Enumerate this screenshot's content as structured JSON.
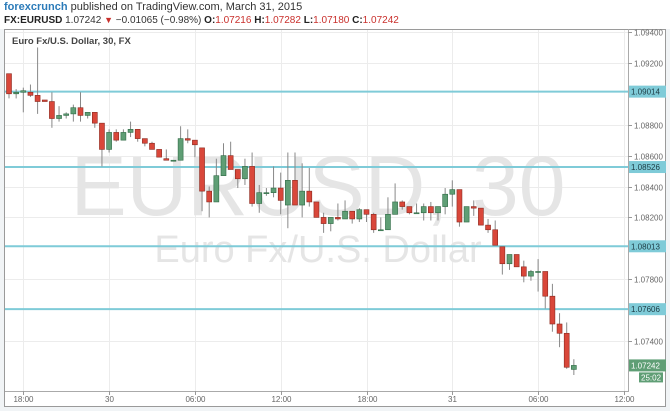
{
  "header": {
    "brand": "forexcrunch",
    "published": "published on TradingView.com, March 31, 2015",
    "symbol": "FX:EURUSD",
    "last": "1.07242",
    "change_icon": "down-triangle-icon",
    "change": "−0.01065 (−0.98%)",
    "o_label": "O:",
    "o_value": "1.07216",
    "h_label": "H:",
    "h_value": "1.07282",
    "l_label": "L:",
    "l_value": "1.07180",
    "c_label": "C:",
    "c_value": "1.07242"
  },
  "legend": "Euro Fx/U.S. Dollar, 30, FX",
  "watermark": {
    "symbol": "EURUSD, 30",
    "description": "Euro Fx/U.S. Dollar"
  },
  "chart_data": {
    "type": "candlestick",
    "interval": "30",
    "ylim": [
      1.0718,
      1.0942
    ],
    "grid": true,
    "y_ticks": [
      "1.09400",
      "1.09200",
      "1.08800",
      "1.08600",
      "1.08400",
      "1.08200",
      "1.07800",
      "1.07400"
    ],
    "x_ticks": [
      {
        "label": "18:00",
        "candle": 2
      },
      {
        "label": "30",
        "candle": 14
      },
      {
        "label": "06:00",
        "candle": 26
      },
      {
        "label": "12:00",
        "candle": 38
      },
      {
        "label": "18:00",
        "candle": 50
      },
      {
        "label": "31",
        "candle": 62
      },
      {
        "label": "06:00",
        "candle": 74
      },
      {
        "label": "12:00",
        "candle": 86
      }
    ],
    "horizontal_lines": [
      {
        "price": 1.09014,
        "label": "1.09014"
      },
      {
        "price": 1.08526,
        "label": "1.08526"
      },
      {
        "price": 1.08013,
        "label": "1.08013"
      },
      {
        "price": 1.07606,
        "label": "1.07606"
      }
    ],
    "last_price": {
      "price": 1.07242,
      "label": "1.07242",
      "countdown": "25:02"
    },
    "colors": {
      "up": "#5f9e75",
      "down": "#d9473a",
      "hline": "#7fcbd8",
      "last": "#5f9e75"
    },
    "ohlc": [
      [
        1.0913,
        1.0913,
        1.0897,
        1.09
      ],
      [
        1.09,
        1.0903,
        1.0897,
        1.0901
      ],
      [
        1.0901,
        1.0904,
        1.0888,
        1.0902
      ],
      [
        1.0901,
        1.0906,
        1.0898,
        1.0899
      ],
      [
        1.0899,
        1.093,
        1.0887,
        1.0895
      ],
      [
        1.0896,
        1.0896,
        1.0895,
        1.0895
      ],
      [
        1.0895,
        1.0901,
        1.0878,
        1.0884
      ],
      [
        1.0884,
        1.0892,
        1.0882,
        1.0886
      ],
      [
        1.0886,
        1.0888,
        1.0884,
        1.0887
      ],
      [
        1.0887,
        1.0893,
        1.0882,
        1.0891
      ],
      [
        1.0891,
        1.0901,
        1.0882,
        1.0886
      ],
      [
        1.0886,
        1.0888,
        1.0884,
        1.0888
      ],
      [
        1.0888,
        1.0888,
        1.0878,
        1.0881
      ],
      [
        1.0881,
        1.0881,
        1.0853,
        1.0864
      ],
      [
        1.0864,
        1.0877,
        1.0862,
        1.0875
      ],
      [
        1.0875,
        1.0877,
        1.0869,
        1.087
      ],
      [
        1.087,
        1.0877,
        1.087,
        1.0875
      ],
      [
        1.0875,
        1.0882,
        1.0872,
        1.0877
      ],
      [
        1.0877,
        1.0877,
        1.0869,
        1.0871
      ],
      [
        1.0871,
        1.0871,
        1.0866,
        1.0868
      ],
      [
        1.0868,
        1.0869,
        1.0864,
        1.0864
      ],
      [
        1.0864,
        1.0864,
        1.0859,
        1.0859
      ],
      [
        1.0858,
        1.0864,
        1.0857,
        1.0857
      ],
      [
        1.0857,
        1.0857,
        1.0857,
        1.0857
      ],
      [
        1.0857,
        1.0879,
        1.0857,
        1.0871
      ],
      [
        1.0871,
        1.0877,
        1.0868,
        1.087
      ],
      [
        1.087,
        1.087,
        1.0859,
        1.0867
      ],
      [
        1.0865,
        1.0865,
        1.0824,
        1.0837
      ],
      [
        1.0837,
        1.084,
        1.082,
        1.083
      ],
      [
        1.083,
        1.0858,
        1.083,
        1.0847
      ],
      [
        1.0847,
        1.0868,
        1.0847,
        1.086
      ],
      [
        1.086,
        1.0869,
        1.0851,
        1.0851
      ],
      [
        1.0851,
        1.0851,
        1.0839,
        1.0845
      ],
      [
        1.0845,
        1.0858,
        1.0841,
        1.0853
      ],
      [
        1.0853,
        1.0862,
        1.0827,
        1.0829
      ],
      [
        1.0829,
        1.0841,
        1.0823,
        1.0836
      ],
      [
        1.0836,
        1.0839,
        1.0834,
        1.0836
      ],
      [
        1.0836,
        1.0853,
        1.0833,
        1.0839
      ],
      [
        1.0839,
        1.0849,
        1.0822,
        1.0831
      ],
      [
        1.0828,
        1.0862,
        1.0813,
        1.0844
      ],
      [
        1.0844,
        1.0862,
        1.0828,
        1.0828
      ],
      [
        1.0828,
        1.0855,
        1.082,
        1.0837
      ],
      [
        1.0837,
        1.0852,
        1.0827,
        1.083
      ],
      [
        1.083,
        1.083,
        1.082,
        1.082
      ],
      [
        1.082,
        1.0823,
        1.081,
        1.0816
      ],
      [
        1.0816,
        1.082,
        1.0811,
        1.082
      ],
      [
        1.082,
        1.0829,
        1.0818,
        1.0819
      ],
      [
        1.0819,
        1.0831,
        1.0819,
        1.0824
      ],
      [
        1.0824,
        1.0824,
        1.0816,
        1.0819
      ],
      [
        1.0819,
        1.0826,
        1.0817,
        1.0825
      ],
      [
        1.0825,
        1.0825,
        1.0817,
        1.0822
      ],
      [
        1.0822,
        1.0823,
        1.081,
        1.0812
      ],
      [
        1.0812,
        1.082,
        1.0812,
        1.0812
      ],
      [
        1.0812,
        1.0833,
        1.0812,
        1.0822
      ],
      [
        1.0822,
        1.0842,
        1.0822,
        1.083
      ],
      [
        1.083,
        1.0831,
        1.0825,
        1.0827
      ],
      [
        1.0827,
        1.0827,
        1.0822,
        1.0823
      ],
      [
        1.0823,
        1.0829,
        1.0823,
        1.0823
      ],
      [
        1.0823,
        1.0829,
        1.0818,
        1.0827
      ],
      [
        1.0827,
        1.083,
        1.0818,
        1.0823
      ],
      [
        1.0823,
        1.0827,
        1.0818,
        1.0827
      ],
      [
        1.0827,
        1.0839,
        1.0822,
        1.0835
      ],
      [
        1.0835,
        1.0844,
        1.0827,
        1.0838
      ],
      [
        1.0838,
        1.0838,
        1.0814,
        1.0817
      ],
      [
        1.0817,
        1.0827,
        1.0817,
        1.0827
      ],
      [
        1.0827,
        1.0831,
        1.0821,
        1.0826
      ],
      [
        1.0826,
        1.0826,
        1.0815,
        1.0815
      ],
      [
        1.0815,
        1.0819,
        1.081,
        1.0812
      ],
      [
        1.0812,
        1.0818,
        1.0802,
        1.0802
      ],
      [
        1.0801,
        1.0801,
        1.0783,
        1.079
      ],
      [
        1.079,
        1.0796,
        1.0786,
        1.0796
      ],
      [
        1.0796,
        1.0796,
        1.0788,
        1.0788
      ],
      [
        1.0788,
        1.0792,
        1.0778,
        1.0782
      ],
      [
        1.0782,
        1.0786,
        1.0779,
        1.0785
      ],
      [
        1.0785,
        1.0793,
        1.0772,
        1.0785
      ],
      [
        1.0785,
        1.0785,
        1.0761,
        1.0769
      ],
      [
        1.0769,
        1.0777,
        1.0746,
        1.0751
      ],
      [
        1.0751,
        1.0758,
        1.0736,
        1.0745
      ],
      [
        1.0745,
        1.0752,
        1.0722,
        1.0723
      ],
      [
        1.07216,
        1.07282,
        1.0718,
        1.07242
      ]
    ]
  }
}
